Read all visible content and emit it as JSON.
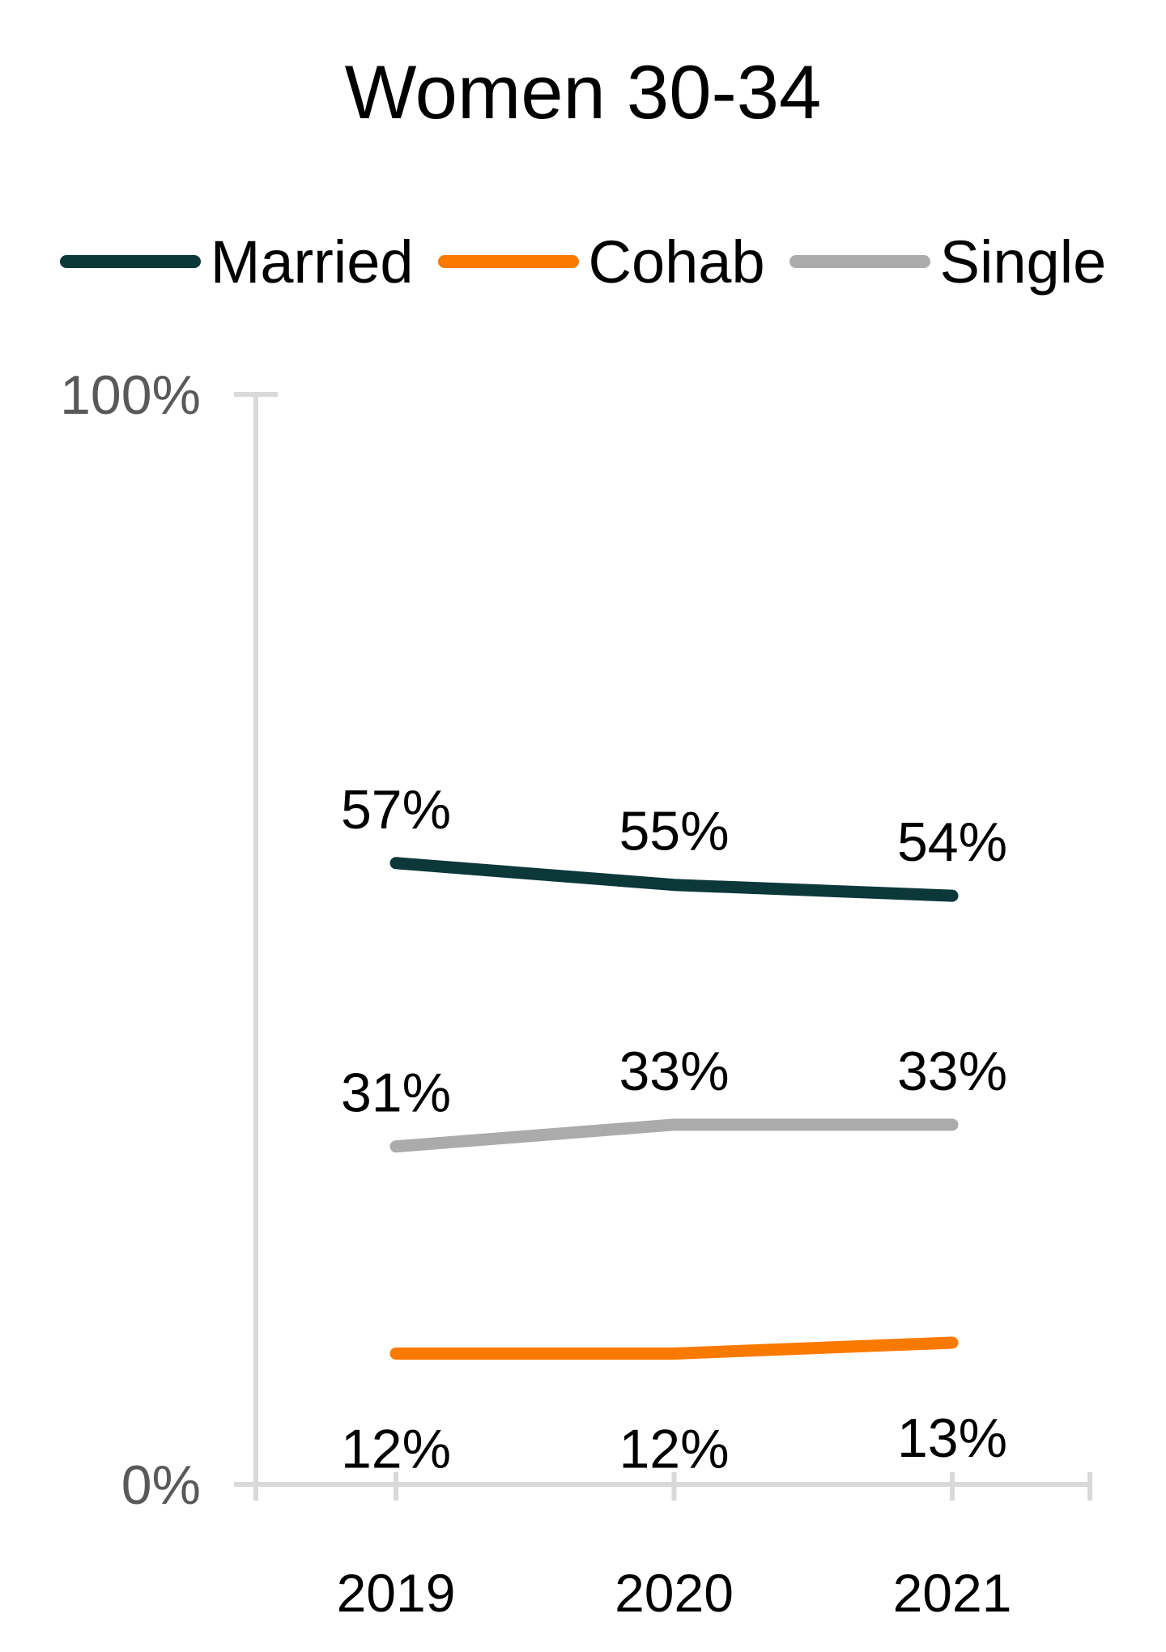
{
  "chart": {
    "title": "Women 30-34"
  },
  "chart_data": {
    "type": "line",
    "title": "Women 30-34",
    "categories": [
      "2019",
      "2020",
      "2021"
    ],
    "series": [
      {
        "name": "Married",
        "values": [
          57,
          55,
          54
        ],
        "labels": [
          "57%",
          "55%",
          "54%"
        ],
        "color": "#0C383A",
        "label_side": "above"
      },
      {
        "name": "Cohab",
        "values": [
          12,
          12,
          13
        ],
        "labels": [
          "12%",
          "12%",
          "13%"
        ],
        "color": "#FA7A00",
        "label_side": "below"
      },
      {
        "name": "Single",
        "values": [
          31,
          33,
          33
        ],
        "labels": [
          "31%",
          "33%",
          "33%"
        ],
        "color": "#ABABAB",
        "label_side": "above"
      }
    ],
    "xlabel": "",
    "ylabel": "",
    "ylim": [
      0,
      100
    ],
    "yticks": [
      {
        "label": "100%",
        "value": 100
      },
      {
        "label": "0%",
        "value": 0
      }
    ],
    "grid": false,
    "legend_position": "top",
    "axis_color": "#D9D9D9",
    "tick_label_color": "#595959",
    "label_color": "#000000"
  }
}
